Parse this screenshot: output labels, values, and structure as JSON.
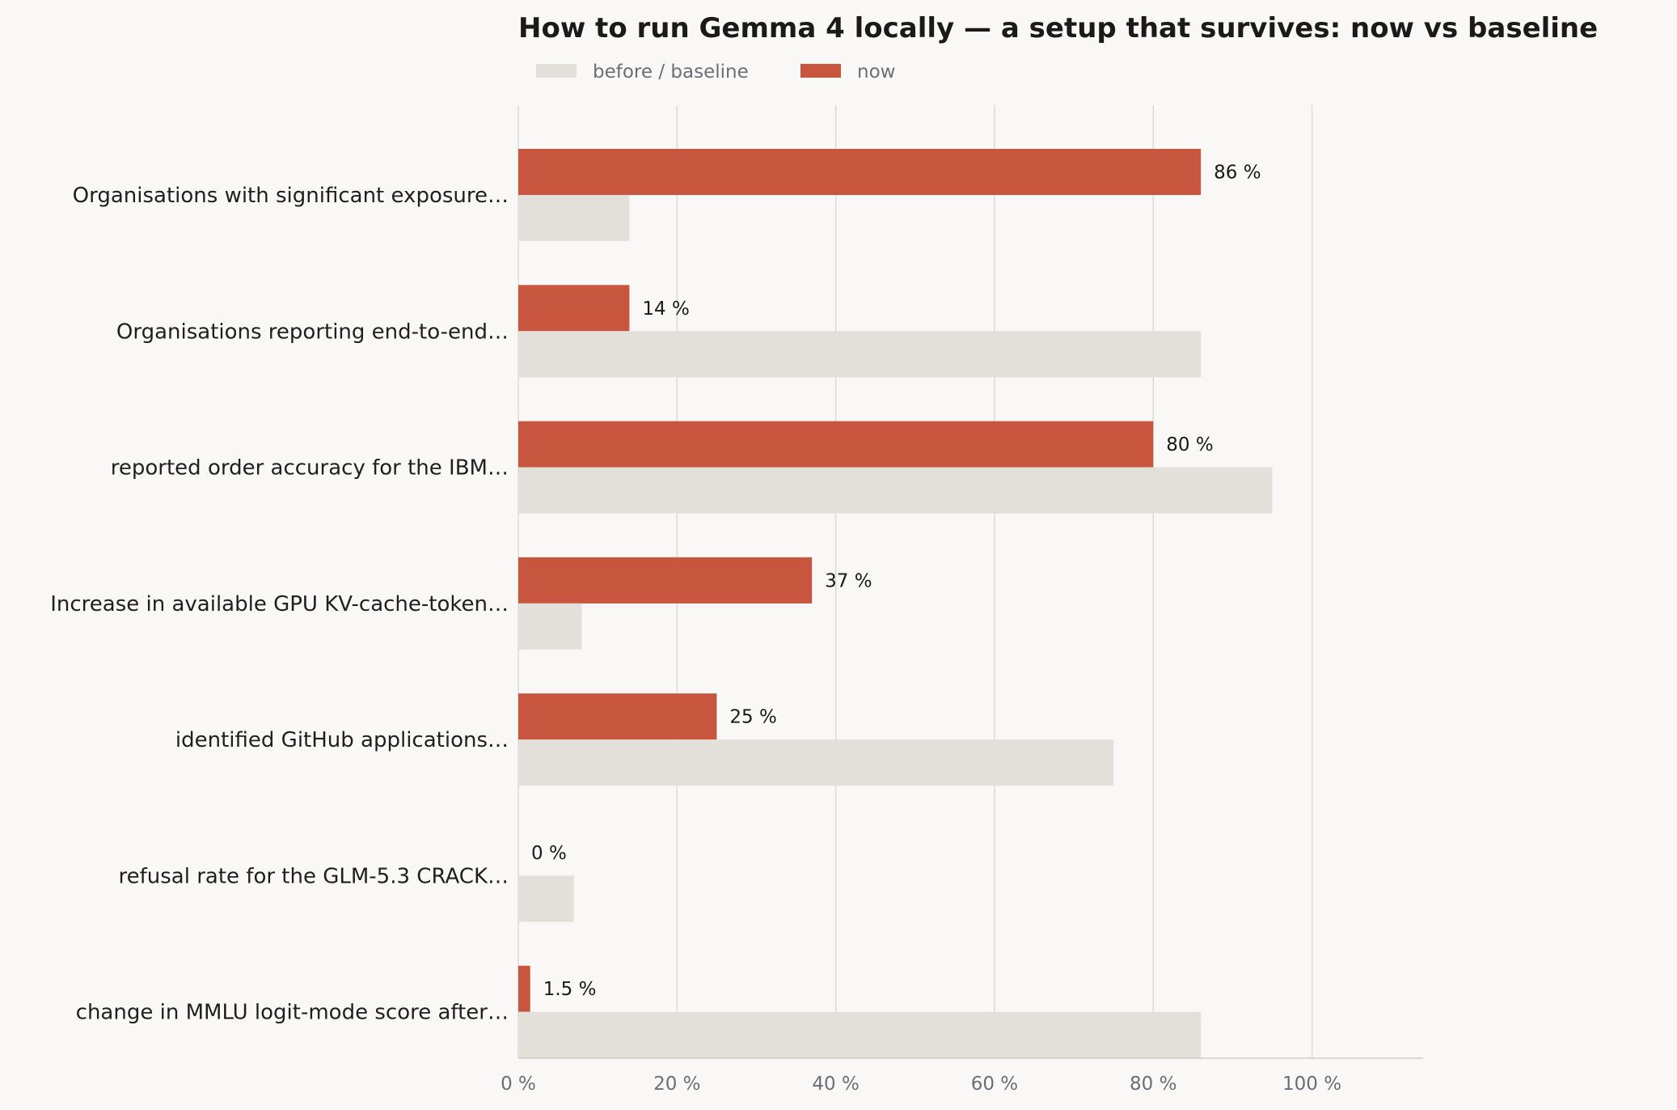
{
  "chart_data": {
    "type": "bar",
    "orientation": "horizontal",
    "title": "How to run Gemma 4 locally — a setup that survives: now vs baseline",
    "xlabel": "",
    "ylabel": "",
    "xlim": [
      0,
      114
    ],
    "grid": true,
    "legend_position": "top-left",
    "value_format": "percent",
    "categories": [
      "Organisations with significant exposure…",
      "Organisations reporting end-to-end…",
      "reported order accuracy for the IBM…",
      "Increase in available GPU KV-cache-token…",
      "identified GitHub applications…",
      "refusal rate for the GLM-5.3 CRACK…",
      "change in MMLU logit-mode score after…"
    ],
    "ticks": [
      {
        "value": 0,
        "label": "0 %"
      },
      {
        "value": 20,
        "label": "20 %"
      },
      {
        "value": 40,
        "label": "40 %"
      },
      {
        "value": 60,
        "label": "60 %"
      },
      {
        "value": 80,
        "label": "80 %"
      },
      {
        "value": 100,
        "label": "100 %"
      }
    ],
    "series": [
      {
        "name": "before / baseline",
        "color": "#e3e0d9",
        "values": [
          14,
          86,
          95,
          8,
          75,
          7,
          86
        ]
      },
      {
        "name": "now",
        "color": "#c8553d",
        "values": [
          86,
          14,
          80,
          37,
          25,
          0,
          1.5
        ],
        "value_labels": [
          "86 %",
          "14 %",
          "80 %",
          "37 %",
          "25 %",
          "0 %",
          "1.5 %"
        ]
      }
    ]
  }
}
